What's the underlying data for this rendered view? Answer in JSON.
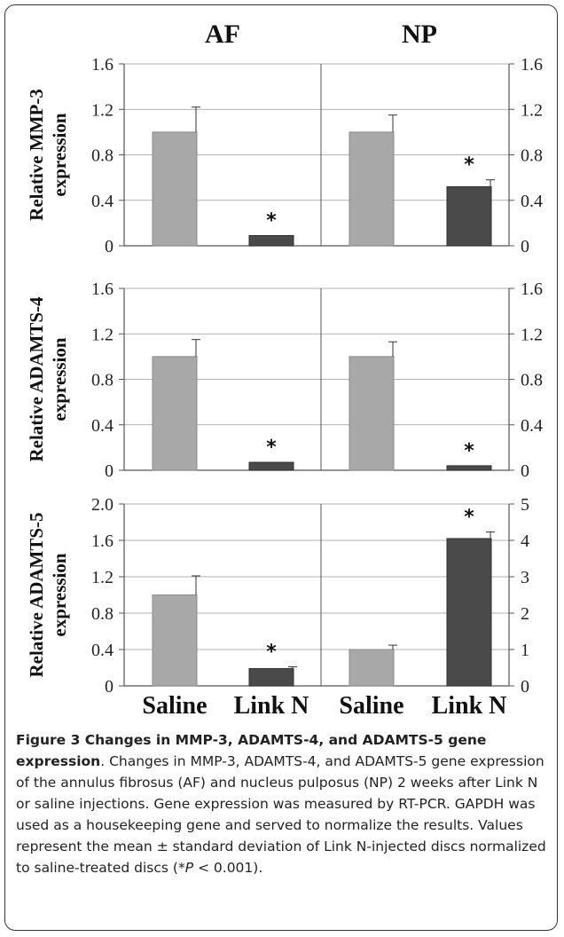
{
  "columns": [
    "AF",
    "NP"
  ],
  "groups": [
    "Saline",
    "Link N",
    "Saline",
    "Link N"
  ],
  "colors": {
    "saline": "#a8a8a8",
    "linkn": "#4a4a4a"
  },
  "caption": {
    "title": "Figure 3 Changes in MMP-3, ADAMTS-4, and ADAMTS-5 gene expression",
    "body": ". Changes in MMP-3, ADAMTS-4, and ADAMTS-5 gene expression of the annulus fibrosus (AF) and nucleus pulposus (NP) 2 weeks after Link N or saline injections. Gene expression was measured by RT-PCR. GAPDH was used as a housekeeping gene and served to normalize the results. Values represent the mean ± standard deviation of Link N-injected discs normalized to saline-treated discs (*",
    "p_italic": "P",
    "p_rest": " < 0.001)."
  },
  "chart_data": [
    {
      "type": "bar",
      "ylabel": "Relative MMP-3 expression",
      "ylabel_lines": [
        "Relative MMP-3",
        "expression"
      ],
      "left_axis": {
        "ylim": [
          0,
          1.6
        ],
        "ticks": [
          "0",
          "0.4",
          "0.8",
          "1.2",
          "1.6"
        ]
      },
      "right_axis": {
        "ylim": [
          0,
          1.6
        ],
        "ticks": [
          "0",
          "0.4",
          "0.8",
          "1.2",
          "1.6"
        ]
      },
      "series": [
        {
          "column": "AF",
          "axis": "left",
          "categories": [
            "Saline",
            "Link N"
          ],
          "values": [
            1.0,
            0.09
          ],
          "errors": [
            0.22,
            0.0
          ],
          "significant": [
            false,
            true
          ]
        },
        {
          "column": "NP",
          "axis": "right",
          "categories": [
            "Saline",
            "Link N"
          ],
          "values": [
            1.0,
            0.52
          ],
          "errors": [
            0.15,
            0.06
          ],
          "significant": [
            false,
            true
          ]
        }
      ],
      "annotation": "*"
    },
    {
      "type": "bar",
      "ylabel": "Relative ADAMTS-4 expression",
      "ylabel_lines": [
        "Relative ADAMTS-4",
        "expression"
      ],
      "left_axis": {
        "ylim": [
          0,
          1.6
        ],
        "ticks": [
          "0",
          "0.4",
          "0.8",
          "1.2",
          "1.6"
        ]
      },
      "right_axis": {
        "ylim": [
          0,
          1.6
        ],
        "ticks": [
          "0",
          "0.4",
          "0.8",
          "1.2",
          "1.6"
        ]
      },
      "series": [
        {
          "column": "AF",
          "axis": "left",
          "categories": [
            "Saline",
            "Link N"
          ],
          "values": [
            1.0,
            0.07
          ],
          "errors": [
            0.15,
            0.0
          ],
          "significant": [
            false,
            true
          ]
        },
        {
          "column": "NP",
          "axis": "right",
          "categories": [
            "Saline",
            "Link N"
          ],
          "values": [
            1.0,
            0.04
          ],
          "errors": [
            0.13,
            0.0
          ],
          "significant": [
            false,
            true
          ]
        }
      ],
      "annotation": "*"
    },
    {
      "type": "bar",
      "ylabel": "Relative ADAMTS-5 expression",
      "ylabel_lines": [
        "Relative ADAMTS-5",
        "expression"
      ],
      "left_axis": {
        "ylim": [
          0,
          2.0
        ],
        "ticks": [
          "0",
          "0.4",
          "0.8",
          "1.2",
          "1.6",
          "2.0"
        ]
      },
      "right_axis": {
        "ylim": [
          0,
          5
        ],
        "ticks": [
          "0",
          "1",
          "2",
          "3",
          "4",
          "5"
        ]
      },
      "series": [
        {
          "column": "AF",
          "axis": "left",
          "categories": [
            "Saline",
            "Link N"
          ],
          "values": [
            1.0,
            0.19
          ],
          "errors": [
            0.21,
            0.02
          ],
          "significant": [
            false,
            true
          ]
        },
        {
          "column": "NP",
          "axis": "right",
          "categories": [
            "Saline",
            "Link N"
          ],
          "values": [
            1.0,
            4.05
          ],
          "errors": [
            0.12,
            0.18
          ],
          "significant": [
            false,
            true
          ]
        }
      ],
      "annotation": "*"
    }
  ]
}
